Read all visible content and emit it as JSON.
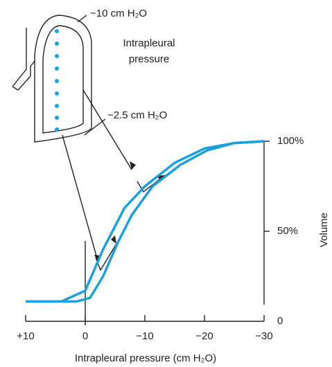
{
  "chart_data": {
    "type": "line",
    "xlabel": "Intrapleural pressure (cm H₂O)",
    "ylabel": "Volume",
    "annotations": [
      "−10 cm H₂O",
      "Intrapleural",
      "pressure",
      "−2.5 cm H₂O"
    ],
    "xlim": [
      10,
      -30
    ],
    "xticks": [
      {
        "value": 10,
        "label": "+10"
      },
      0,
      {
        "value": -10,
        "label": "−10"
      },
      {
        "value": -20,
        "label": "−20"
      },
      {
        "value": -30,
        "label": "−30"
      }
    ],
    "ylim": [
      0,
      100
    ],
    "yticks": [
      0,
      {
        "value": 50,
        "label": "50%"
      },
      {
        "value": 100,
        "label": "100%"
      }
    ],
    "series": [
      {
        "color": "#1aa0dc",
        "x": [
          10,
          4,
          0,
          -3,
          -6.6,
          -10,
          -15,
          -20,
          -25,
          -30
        ],
        "values": [
          11,
          11,
          17,
          40,
          63,
          75,
          88,
          96,
          99,
          100
        ]
      },
      {
        "color": "#1aa0dc",
        "x": [
          10,
          1.5,
          -0.8,
          -3,
          -5.5,
          -7.8,
          -11.3,
          -16,
          -20.5,
          -25,
          -30
        ],
        "values": [
          11,
          11,
          13,
          25,
          44,
          59,
          75,
          87,
          95,
          99,
          100
        ]
      }
    ]
  }
}
